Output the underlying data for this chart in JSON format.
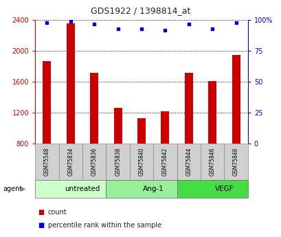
{
  "title": "GDS1922 / 1398814_at",
  "samples": [
    "GSM75548",
    "GSM75834",
    "GSM75836",
    "GSM75838",
    "GSM75840",
    "GSM75842",
    "GSM75844",
    "GSM75846",
    "GSM75848"
  ],
  "counts": [
    1870,
    2360,
    1720,
    1260,
    1130,
    1220,
    1720,
    1610,
    1950
  ],
  "percentiles": [
    98,
    99,
    97,
    93,
    93,
    92,
    97,
    93,
    98
  ],
  "bar_bottom": 800,
  "ylim_left": [
    800,
    2400
  ],
  "ylim_right": [
    0,
    100
  ],
  "yticks_left": [
    800,
    1200,
    1600,
    2000,
    2400
  ],
  "yticks_right": [
    0,
    25,
    50,
    75,
    100
  ],
  "bar_color": "#cc0000",
  "dot_color": "#0000cc",
  "groups": [
    {
      "label": "untreated",
      "start": 0,
      "end": 3,
      "color": "#ccffcc"
    },
    {
      "label": "Ang-1",
      "start": 3,
      "end": 6,
      "color": "#99ee99"
    },
    {
      "label": "VEGF",
      "start": 6,
      "end": 9,
      "color": "#44dd44"
    }
  ],
  "agent_label": "agent",
  "legend_count": "count",
  "legend_percentile": "percentile rank within the sample",
  "bar_width": 0.35,
  "sample_box_color": "#d0d0d0",
  "left_axis_color": "#cc0000",
  "right_axis_color": "#0000cc"
}
